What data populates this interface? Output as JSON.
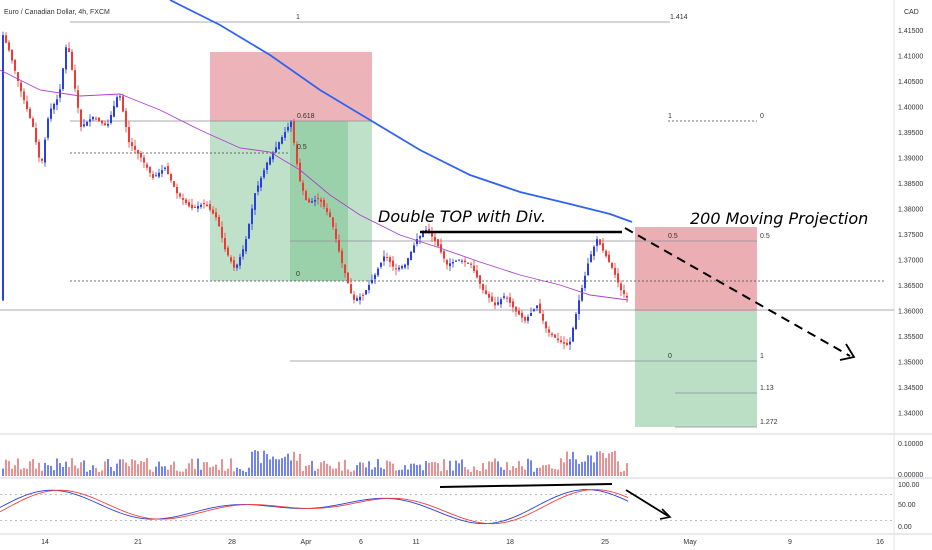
{
  "title": "Euro / Canadian Dollar, 4h, FXCM",
  "currency": "CAD",
  "colors": {
    "bg": "#ffffff",
    "up": "#2a3fe0",
    "down": "#ef3b36",
    "ma200": "#2f63f0",
    "ma50": "#b03fd0",
    "long_zone": "#8cc99c",
    "short_zone": "#e59aa0",
    "stoch_k": "#2b3fd6",
    "stoch_d": "#f04040"
  },
  "chart_data": {
    "type": "candlestick",
    "y_ticks": [
      "1.41500",
      "1.41000",
      "1.40500",
      "1.40000",
      "1.39500",
      "1.39000",
      "1.38500",
      "1.38000",
      "1.37500",
      "1.37000",
      "1.36500",
      "1.36000",
      "1.35500",
      "1.35000",
      "1.34500",
      "1.34000"
    ],
    "x_ticks": [
      "14",
      "21",
      "28",
      "Apr",
      "6",
      "11",
      "18",
      "25",
      "May",
      "9",
      "16"
    ],
    "volume_ticks": [
      "0.10000",
      "0.00000"
    ],
    "stoch_ticks": [
      "100.00",
      "50.00",
      "0.00"
    ],
    "fib_labels": [
      "1",
      "1.414",
      "0.618",
      "0.5",
      "0",
      "1",
      "0",
      "0.5",
      "0.5",
      "0",
      "1",
      "1.13",
      "1.272"
    ],
    "annotations": [
      "Double TOP with Div.",
      "200 Moving Projection"
    ],
    "stochastic_levels": [
      80,
      20
    ]
  }
}
